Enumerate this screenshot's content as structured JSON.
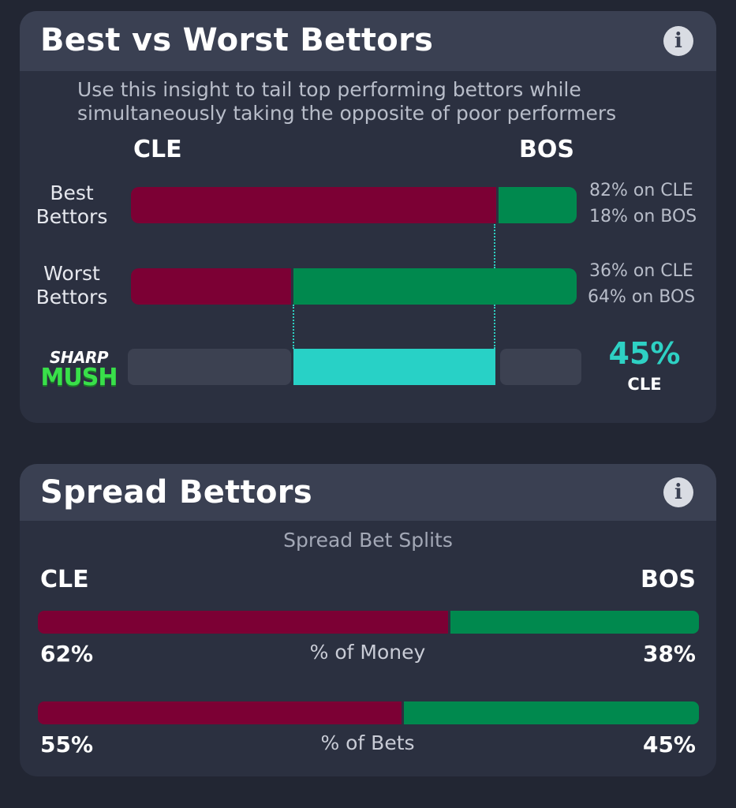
{
  "best_worst": {
    "title": "Best vs Worst Bettors",
    "info_icon": "info-icon",
    "subtitle_line1": "Use this insight to tail top performing bettors while",
    "subtitle_line2": "simultaneously taking the opposite of poor performers",
    "team_left": "CLE",
    "team_right": "BOS",
    "rows": [
      {
        "label_line1": "Best",
        "label_line2": "Bettors",
        "left_pct": 82,
        "right_pct": 18,
        "left_text": "82% on CLE",
        "right_text": "18% on BOS"
      },
      {
        "label_line1": "Worst",
        "label_line2": "Bettors",
        "left_pct": 36,
        "right_pct": 64,
        "left_text": "36% on CLE",
        "right_text": "64% on BOS"
      }
    ],
    "sharp": {
      "logo_top": "SHARP",
      "logo_bottom": "MUSH",
      "value": "45%",
      "team": "CLE",
      "from_pct": 36,
      "to_pct": 82
    },
    "colors": {
      "left_team": "#7c0034",
      "right_team": "#00894e",
      "accent": "#28d1c6"
    }
  },
  "spread": {
    "title": "Spread Bettors",
    "info_icon": "info-icon",
    "subtitle": "Spread Bet Splits",
    "team_left": "CLE",
    "team_right": "BOS",
    "rows": [
      {
        "label": "% of Money",
        "left_pct": 62,
        "right_pct": 38,
        "left_text": "62%",
        "right_text": "38%"
      },
      {
        "label": "% of Bets",
        "left_pct": 55,
        "right_pct": 45,
        "left_text": "55%",
        "right_text": "45%"
      }
    ]
  }
}
